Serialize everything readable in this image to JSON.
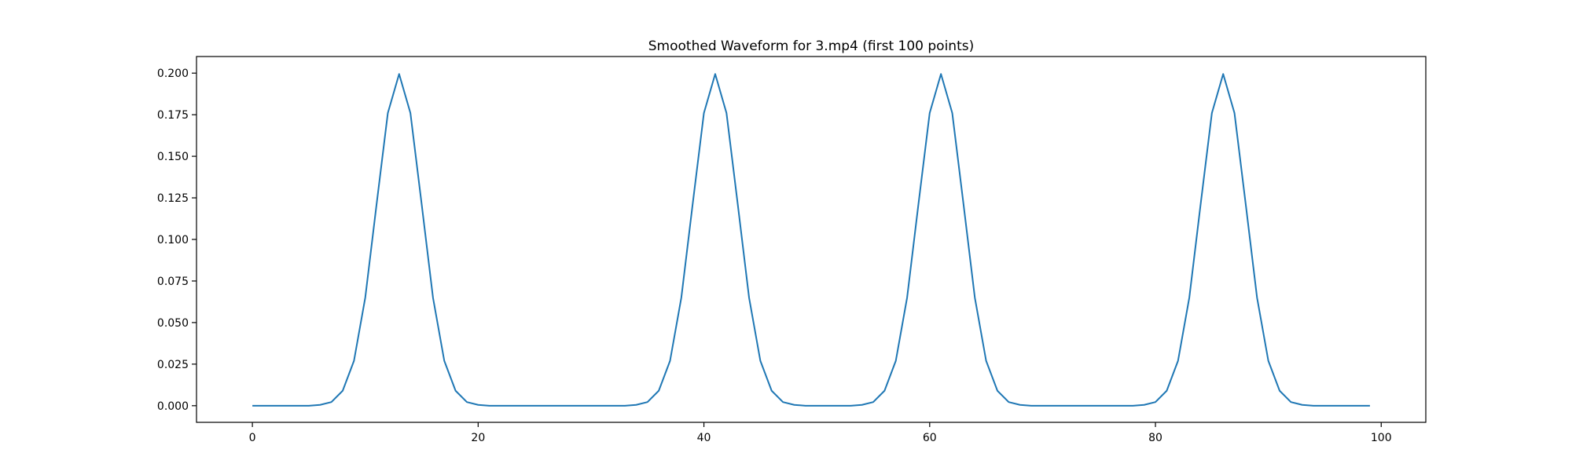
{
  "chart_data": {
    "type": "line",
    "title": "Smoothed Waveform for 3.mp4 (first 100 points)",
    "xlabel": "",
    "ylabel": "",
    "xlim": [
      -4.95,
      103.95
    ],
    "ylim": [
      -0.01,
      0.21
    ],
    "xticks": [
      0,
      20,
      40,
      60,
      80,
      100
    ],
    "xtick_labels": [
      "0",
      "20",
      "40",
      "60",
      "80",
      "100"
    ],
    "yticks": [
      0.0,
      0.025,
      0.05,
      0.075,
      0.1,
      0.125,
      0.15,
      0.175,
      0.2
    ],
    "ytick_labels": [
      "0.000",
      "0.025",
      "0.050",
      "0.075",
      "0.100",
      "0.125",
      "0.150",
      "0.175",
      "0.200"
    ],
    "grid": false,
    "series": [
      {
        "color": "#1f77b4",
        "x": [
          0,
          1,
          2,
          3,
          4,
          5,
          6,
          7,
          8,
          9,
          10,
          11,
          12,
          13,
          14,
          15,
          16,
          17,
          18,
          19,
          20,
          21,
          22,
          23,
          24,
          25,
          26,
          27,
          28,
          29,
          30,
          31,
          32,
          33,
          34,
          35,
          36,
          37,
          38,
          39,
          40,
          41,
          42,
          43,
          44,
          45,
          46,
          47,
          48,
          49,
          50,
          51,
          52,
          53,
          54,
          55,
          56,
          57,
          58,
          59,
          60,
          61,
          62,
          63,
          64,
          65,
          66,
          67,
          68,
          69,
          70,
          71,
          72,
          73,
          74,
          75,
          76,
          77,
          78,
          79,
          80,
          81,
          82,
          83,
          84,
          85,
          86,
          87,
          88,
          89,
          90,
          91,
          92,
          93,
          94,
          95,
          96,
          97,
          98,
          99
        ],
        "values": [
          0,
          0,
          0,
          0,
          0,
          0,
          0.0005,
          0.0022,
          0.009,
          0.027,
          0.065,
          0.121,
          0.176,
          0.1995,
          0.176,
          0.121,
          0.065,
          0.027,
          0.009,
          0.0022,
          0.0005,
          0,
          0,
          0,
          0,
          0,
          0,
          0,
          0,
          0,
          0,
          0,
          0,
          0,
          0.0005,
          0.0022,
          0.009,
          0.027,
          0.065,
          0.121,
          0.176,
          0.1995,
          0.176,
          0.121,
          0.065,
          0.027,
          0.009,
          0.0022,
          0.0005,
          0,
          0,
          0,
          0,
          0,
          0.0005,
          0.0022,
          0.009,
          0.027,
          0.065,
          0.121,
          0.176,
          0.1995,
          0.176,
          0.121,
          0.065,
          0.027,
          0.009,
          0.0022,
          0.0005,
          0,
          0,
          0,
          0,
          0,
          0,
          0,
          0,
          0,
          0,
          0.0005,
          0.0022,
          0.009,
          0.027,
          0.065,
          0.121,
          0.176,
          0.1995,
          0.176,
          0.121,
          0.065,
          0.027,
          0.009,
          0.0022,
          0.0005,
          0,
          0,
          0,
          0,
          0,
          0
        ]
      }
    ]
  }
}
